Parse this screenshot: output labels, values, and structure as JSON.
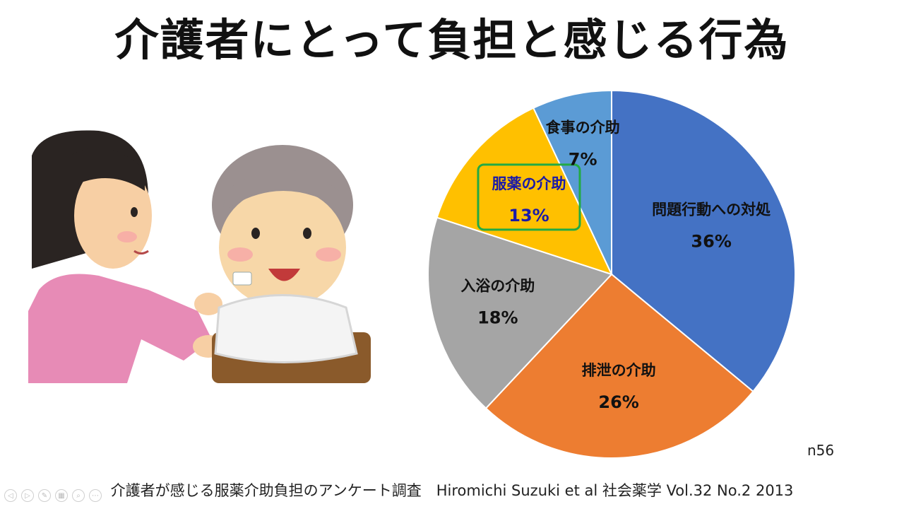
{
  "slide": {
    "title": "介護者にとって負担と感じる行為",
    "sample_size": "n56",
    "citation": "介護者が感じる服薬介助負担のアンケート調査　Hiromichi Suzuki et al 社会薬学 Vol.32 No.2 2013"
  },
  "toolbar": {
    "icons": [
      "prev-icon",
      "next-icon",
      "pen-icon",
      "slides-icon",
      "zoom-icon",
      "more-icon"
    ]
  },
  "highlight_color": "#22AA44",
  "highlight_label_color": "#1a1aa8",
  "chart_data": {
    "type": "pie",
    "start": "12 o'clock, clockwise",
    "slices": [
      {
        "label": "問題行動への対処",
        "value": 36,
        "value_label": "36%",
        "color": "#4472C4",
        "highlighted": false
      },
      {
        "label": "排泄の介助",
        "value": 26,
        "value_label": "26%",
        "color": "#ED7D31",
        "highlighted": false
      },
      {
        "label": "入浴の介助",
        "value": 18,
        "value_label": "18%",
        "color": "#A5A5A5",
        "highlighted": false
      },
      {
        "label": "服薬の介助",
        "value": 13,
        "value_label": "13%",
        "color": "#FFC000",
        "highlighted": true
      },
      {
        "label": "食事の介助",
        "value": 7,
        "value_label": "7%",
        "color": "#5B9BD5",
        "highlighted": false
      }
    ]
  }
}
